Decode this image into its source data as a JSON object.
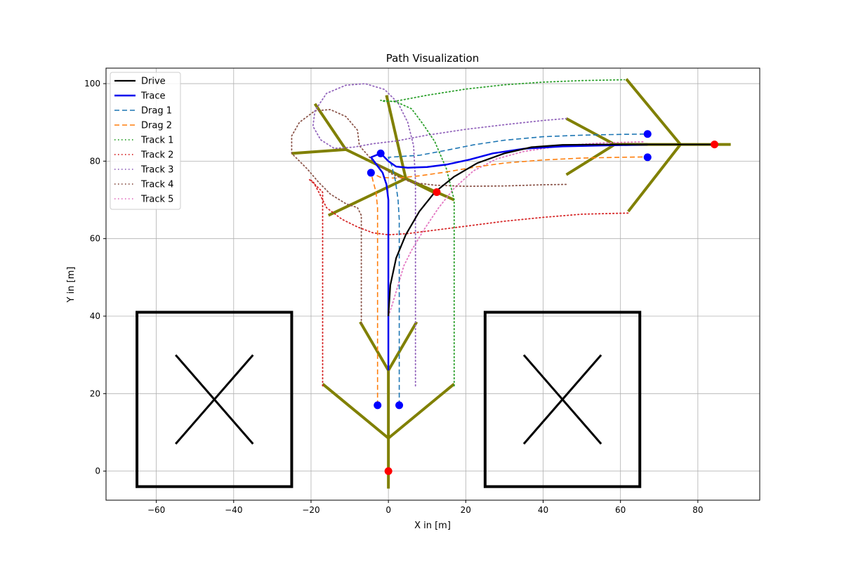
{
  "chart_data": {
    "type": "line",
    "title": "Path Visualization",
    "xlabel": "X in [m]",
    "ylabel": "Y in [m]",
    "xlim": [
      -73,
      96
    ],
    "ylim": [
      -7.5,
      104
    ],
    "xticks": [
      -60,
      -40,
      -20,
      0,
      20,
      40,
      60,
      80
    ],
    "yticks": [
      0,
      20,
      40,
      60,
      80,
      100
    ],
    "grid": true,
    "legend_position": "top-left",
    "series": [
      {
        "name": "Drive",
        "color": "#000000",
        "style": "solid",
        "width": 2.2,
        "points": [
          [
            0,
            40
          ],
          [
            0.5,
            48
          ],
          [
            2,
            55
          ],
          [
            4.5,
            61
          ],
          [
            8,
            67
          ],
          [
            12,
            72
          ],
          [
            17,
            76
          ],
          [
            23,
            79.5
          ],
          [
            30,
            82
          ],
          [
            37,
            83.6
          ],
          [
            45,
            84.2
          ],
          [
            55,
            84.3
          ],
          [
            65,
            84.3
          ],
          [
            75,
            84.3
          ],
          [
            84,
            84.3
          ]
        ]
      },
      {
        "name": "Trace",
        "color": "#0000ee",
        "style": "solid",
        "width": 2.5,
        "points": [
          [
            0,
            26
          ],
          [
            0,
            70
          ],
          [
            -0.5,
            74
          ],
          [
            -1.5,
            77
          ],
          [
            -3,
            79
          ],
          [
            -4.5,
            81
          ],
          [
            -2,
            82
          ],
          [
            0,
            80
          ],
          [
            2,
            78.6
          ],
          [
            5,
            78.3
          ],
          [
            10,
            78.5
          ],
          [
            15,
            79.1
          ],
          [
            21,
            80.4
          ],
          [
            27,
            82
          ],
          [
            35,
            83.2
          ],
          [
            45,
            83.8
          ],
          [
            58,
            84.1
          ],
          [
            67,
            84.3
          ]
        ]
      },
      {
        "name": "Drag 1",
        "color": "#1f77b4",
        "style": "dashed",
        "width": 1.6,
        "points": [
          [
            2.8,
            17
          ],
          [
            2.8,
            65
          ],
          [
            2.5,
            70
          ],
          [
            1.8,
            75
          ],
          [
            0.8,
            79
          ],
          [
            0,
            81
          ],
          [
            3,
            81.2
          ],
          [
            8,
            81.5
          ],
          [
            15,
            82.8
          ],
          [
            22,
            84.2
          ],
          [
            30,
            85.4
          ],
          [
            40,
            86.3
          ],
          [
            50,
            86.7
          ],
          [
            60,
            86.9
          ],
          [
            67,
            87
          ]
        ]
      },
      {
        "name": "Drag 2",
        "color": "#ff7f0e",
        "style": "dashed",
        "width": 1.6,
        "points": [
          [
            -2.8,
            17
          ],
          [
            -2.8,
            68
          ],
          [
            -3.2,
            72
          ],
          [
            -4,
            75
          ],
          [
            -4.5,
            77
          ],
          [
            -2,
            75.8
          ],
          [
            2,
            75.6
          ],
          [
            8,
            76.2
          ],
          [
            15,
            77.2
          ],
          [
            22,
            78.4
          ],
          [
            30,
            79.5
          ],
          [
            40,
            80.3
          ],
          [
            50,
            80.8
          ],
          [
            60,
            81
          ],
          [
            67,
            81.1
          ]
        ]
      },
      {
        "name": "Track 1",
        "color": "#2ca02c",
        "style": "dotted",
        "width": 1.8,
        "points": [
          [
            17,
            22
          ],
          [
            17,
            70
          ],
          [
            15,
            78
          ],
          [
            12,
            85
          ],
          [
            9,
            89.5
          ],
          [
            6,
            93.5
          ],
          [
            2,
            95.3
          ],
          [
            -2,
            95.7
          ],
          [
            -1,
            95.4
          ],
          [
            2,
            95.5
          ],
          [
            10,
            97
          ],
          [
            20,
            98.6
          ],
          [
            30,
            99.7
          ],
          [
            40,
            100.4
          ],
          [
            50,
            100.8
          ],
          [
            61,
            101
          ]
        ]
      },
      {
        "name": "Track 2",
        "color": "#d62728",
        "style": "dotted",
        "width": 1.8,
        "points": [
          [
            -17,
            22
          ],
          [
            -17,
            72
          ],
          [
            -19,
            74
          ],
          [
            -20.5,
            75.3
          ],
          [
            -19.5,
            74.8
          ],
          [
            -18,
            72
          ],
          [
            -16,
            68
          ],
          [
            -12,
            65
          ],
          [
            -8,
            63
          ],
          [
            -4,
            61.5
          ],
          [
            0,
            61
          ],
          [
            5,
            61.3
          ],
          [
            12,
            62.2
          ],
          [
            20,
            63.2
          ],
          [
            30,
            64.5
          ],
          [
            40,
            65.5
          ],
          [
            50,
            66.3
          ],
          [
            62,
            66.6
          ]
        ]
      },
      {
        "name": "Track 3",
        "color": "#9467bd",
        "style": "dotted",
        "width": 1.8,
        "points": [
          [
            7,
            22
          ],
          [
            7,
            75
          ],
          [
            6.5,
            84
          ],
          [
            5,
            90
          ],
          [
            2.5,
            95
          ],
          [
            -1,
            98.5
          ],
          [
            -6,
            100
          ],
          [
            -11,
            99.6
          ],
          [
            -16,
            97.5
          ],
          [
            -19,
            93
          ],
          [
            -19.5,
            89
          ],
          [
            -17.5,
            85.5
          ],
          [
            -14,
            83.3
          ],
          [
            -9,
            83.6
          ],
          [
            -4,
            84.5
          ],
          [
            2,
            85.2
          ],
          [
            10,
            86.7
          ],
          [
            20,
            88.2
          ],
          [
            30,
            89.4
          ],
          [
            40,
            90.5
          ],
          [
            46,
            91
          ]
        ]
      },
      {
        "name": "Track 4",
        "color": "#8c564b",
        "style": "dotted",
        "width": 1.8,
        "points": [
          [
            -7,
            38
          ],
          [
            -7,
            66
          ],
          [
            -8,
            68
          ],
          [
            -11,
            69
          ],
          [
            -15,
            71.5
          ],
          [
            -18,
            74.5
          ],
          [
            -21,
            78
          ],
          [
            -25,
            82
          ],
          [
            -25,
            86.5
          ],
          [
            -23,
            90
          ],
          [
            -19,
            93
          ],
          [
            -15,
            93.3
          ],
          [
            -11,
            91.5
          ],
          [
            -8,
            88
          ],
          [
            -7.5,
            84
          ],
          [
            -4,
            80
          ],
          [
            1,
            76.6
          ],
          [
            6,
            74.5
          ],
          [
            12,
            73.8
          ],
          [
            20,
            73.5
          ],
          [
            30,
            73.6
          ],
          [
            40,
            73.9
          ],
          [
            46,
            74
          ]
        ]
      },
      {
        "name": "Track 5",
        "color": "#e377c2",
        "style": "dotted",
        "width": 1.8,
        "points": [
          [
            0,
            40
          ],
          [
            1,
            43
          ],
          [
            2.5,
            48
          ],
          [
            4,
            53
          ],
          [
            6,
            57
          ],
          [
            9,
            62
          ],
          [
            13,
            68
          ],
          [
            17,
            73
          ],
          [
            22,
            77.5
          ],
          [
            28,
            80.6
          ],
          [
            35,
            82.5
          ],
          [
            45,
            84
          ],
          [
            55,
            84.7
          ],
          [
            66,
            85
          ]
        ]
      }
    ],
    "trees": [
      {
        "name": "start-tree",
        "segments": [
          [
            [
              0,
              -4.5
            ],
            [
              0,
              8.5
            ]
          ],
          [
            [
              0,
              8.5
            ],
            [
              -17,
              22.5
            ]
          ],
          [
            [
              0,
              8.5
            ],
            [
              17,
              22.5
            ]
          ],
          [
            [
              0,
              8.5
            ],
            [
              0,
              26
            ]
          ],
          [
            [
              0,
              26
            ],
            [
              -7.3,
              38.5
            ]
          ],
          [
            [
              0,
              26
            ],
            [
              7.3,
              38.5
            ]
          ]
        ]
      },
      {
        "name": "top-left-tree",
        "segments": [
          [
            [
              4.5,
              75.5
            ],
            [
              12,
              71.8
            ]
          ],
          [
            [
              4.5,
              75.5
            ],
            [
              17,
              70
            ]
          ],
          [
            [
              4.5,
              75.5
            ],
            [
              -15.5,
              66
            ]
          ],
          [
            [
              4.5,
              75.5
            ],
            [
              -11,
              83
            ]
          ],
          [
            [
              -11,
              83
            ],
            [
              -25,
              82
            ]
          ],
          [
            [
              -11,
              83
            ],
            [
              -19,
              94.8
            ]
          ],
          [
            [
              4.5,
              75.5
            ],
            [
              -0.5,
              97
            ]
          ]
        ]
      },
      {
        "name": "right-tree",
        "segments": [
          [
            [
              88.5,
              84.3
            ],
            [
              75.5,
              84.3
            ]
          ],
          [
            [
              75.5,
              84.3
            ],
            [
              61.5,
              101.2
            ]
          ],
          [
            [
              75.5,
              84.3
            ],
            [
              62,
              67
            ]
          ],
          [
            [
              75.5,
              84.3
            ],
            [
              58.5,
              84.3
            ]
          ],
          [
            [
              58.5,
              84.3
            ],
            [
              46,
              91
            ]
          ],
          [
            [
              58.5,
              84.3
            ],
            [
              46,
              76.5
            ]
          ],
          [
            [
              58.5,
              84.3
            ],
            [
              67,
              84.3
            ]
          ]
        ]
      }
    ],
    "obstacles": [
      {
        "name": "obstacle-left",
        "x": [
          -65,
          -25
        ],
        "y": [
          -4,
          41
        ]
      },
      {
        "name": "obstacle-right",
        "x": [
          25,
          65
        ],
        "y": [
          -4,
          41
        ]
      }
    ],
    "start_points": [
      [
        -2.8,
        17
      ],
      [
        2.8,
        17
      ],
      [
        -4.5,
        77
      ],
      [
        -2,
        82
      ],
      [
        67,
        87
      ],
      [
        67,
        81
      ]
    ],
    "goal_points": [
      [
        0,
        0
      ],
      [
        12.5,
        72
      ],
      [
        84.3,
        84.3
      ]
    ],
    "colors": {
      "tree": "#808000",
      "start_point": "#0000ff",
      "goal_point": "#ff0000",
      "grid": "#b0b0b0"
    }
  }
}
